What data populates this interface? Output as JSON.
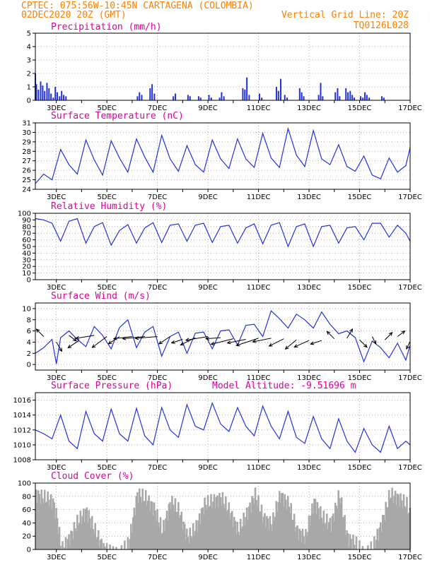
{
  "header": {
    "line1_left": "CPTEC:   075:56W-10:45N   CARTAGENA (COLOMBIA)",
    "line2_left": "02DEC2020 20Z (GMT)",
    "line2_right": "Vertical Grid Line: 20Z",
    "line3_right": "TQ0126L028"
  },
  "colors": {
    "header": "#ff7f00",
    "title": "#e0009a",
    "series": "#2233dd",
    "cloud": "#a8a8a8",
    "grid": "#999999"
  },
  "x_axis": {
    "labels": [
      "3DEC",
      "5DEC",
      "7DEC",
      "9DEC",
      "11DEC",
      "13DEC",
      "15DEC",
      "17DEC"
    ],
    "label_days": [
      3,
      5,
      7,
      9,
      11,
      13,
      15,
      17
    ],
    "day_min": 2.17,
    "day_max": 17.0
  },
  "chart_data": [
    {
      "type": "bar",
      "title": "Precipitation (mm/h)",
      "ylim": [
        0,
        5
      ],
      "yticks": [
        0,
        1,
        2,
        3,
        4,
        5
      ],
      "color": "#2233dd",
      "x": [
        2.17,
        2.21,
        2.29,
        2.38,
        2.46,
        2.54,
        2.63,
        2.71,
        2.79,
        2.88,
        2.96,
        3.04,
        3.13,
        3.21,
        3.29,
        3.38,
        6.21,
        6.29,
        6.38,
        6.71,
        6.79,
        6.88,
        7.63,
        7.71,
        8.21,
        8.29,
        8.63,
        8.71,
        9.04,
        9.13,
        9.46,
        9.54,
        9.63,
        10.38,
        10.46,
        10.54,
        10.63,
        11.04,
        11.13,
        11.71,
        11.79,
        11.88,
        12.04,
        12.13,
        12.63,
        12.71,
        12.79,
        13.38,
        13.46,
        13.54,
        14.04,
        14.13,
        14.21,
        14.46,
        14.54,
        14.63,
        14.71,
        14.79,
        15.04,
        15.13,
        15.21,
        15.29,
        15.38,
        15.88,
        15.96
      ],
      "values": [
        2.0,
        1.2,
        0.8,
        1.4,
        1.1,
        0.7,
        1.3,
        0.9,
        0.5,
        0.2,
        1.0,
        0.6,
        0.3,
        0.7,
        0.4,
        0.3,
        0.3,
        0.6,
        0.4,
        0.9,
        1.2,
        0.5,
        0.3,
        0.5,
        0.4,
        0.3,
        0.3,
        0.2,
        0.4,
        0.2,
        0.2,
        0.6,
        0.3,
        0.9,
        0.8,
        1.7,
        0.4,
        0.5,
        0.2,
        1.0,
        0.7,
        1.6,
        0.4,
        0.2,
        0.9,
        0.6,
        0.3,
        0.4,
        1.3,
        0.3,
        0.6,
        0.9,
        0.3,
        0.9,
        0.6,
        0.7,
        0.4,
        0.2,
        0.3,
        0.2,
        0.6,
        0.4,
        0.2,
        0.3,
        0.2
      ]
    },
    {
      "type": "line",
      "title": "Surface Temperature (nC)",
      "ylim": [
        24,
        31
      ],
      "yticks": [
        24,
        25,
        26,
        27,
        28,
        29,
        30,
        31
      ],
      "color": "#2233dd",
      "x": [
        2.17,
        2.5,
        2.83,
        3.17,
        3.5,
        3.83,
        4.17,
        4.5,
        4.83,
        5.17,
        5.5,
        5.83,
        6.17,
        6.5,
        6.83,
        7.17,
        7.5,
        7.83,
        8.17,
        8.5,
        8.83,
        9.17,
        9.5,
        9.83,
        10.17,
        10.5,
        10.83,
        11.17,
        11.5,
        11.83,
        12.17,
        12.5,
        12.83,
        13.17,
        13.5,
        13.83,
        14.17,
        14.5,
        14.83,
        15.17,
        15.5,
        15.83,
        16.17,
        16.5,
        16.83,
        17.0
      ],
      "values": [
        24.6,
        25.6,
        25.0,
        28.2,
        26.6,
        25.6,
        29.2,
        27.1,
        25.5,
        29.1,
        27.3,
        25.8,
        29.3,
        27.4,
        25.8,
        29.7,
        27.2,
        25.9,
        28.6,
        26.6,
        25.8,
        29.2,
        27.2,
        26.2,
        29.3,
        27.2,
        26.3,
        29.9,
        27.3,
        26.3,
        30.4,
        27.6,
        26.4,
        30.2,
        27.2,
        26.6,
        28.7,
        26.4,
        25.9,
        27.5,
        25.5,
        25.1,
        27.3,
        25.8,
        26.5,
        28.4
      ]
    },
    {
      "type": "line",
      "title": "Relative Humidity (%)",
      "ylim": [
        0,
        100
      ],
      "yticks": [
        0,
        10,
        20,
        30,
        40,
        50,
        60,
        70,
        80,
        90,
        100
      ],
      "color": "#2233dd",
      "x": [
        2.17,
        2.5,
        2.83,
        3.17,
        3.5,
        3.83,
        4.17,
        4.5,
        4.83,
        5.17,
        5.5,
        5.83,
        6.17,
        6.5,
        6.83,
        7.17,
        7.5,
        7.83,
        8.17,
        8.5,
        8.83,
        9.17,
        9.5,
        9.83,
        10.17,
        10.5,
        10.83,
        11.17,
        11.5,
        11.83,
        12.17,
        12.5,
        12.83,
        13.17,
        13.5,
        13.83,
        14.17,
        14.5,
        14.83,
        15.17,
        15.5,
        15.83,
        16.17,
        16.5,
        16.83,
        17.0
      ],
      "values": [
        92,
        90,
        85,
        58,
        88,
        92,
        55,
        80,
        86,
        52,
        74,
        83,
        55,
        78,
        86,
        56,
        82,
        84,
        58,
        82,
        85,
        56,
        80,
        82,
        55,
        78,
        84,
        54,
        82,
        86,
        50,
        80,
        84,
        50,
        80,
        82,
        55,
        78,
        80,
        60,
        85,
        85,
        64,
        82,
        70,
        58
      ]
    },
    {
      "type": "line",
      "title": "Surface Wind (m/s)",
      "ylim": [
        -1,
        11
      ],
      "yticks": [
        0,
        2,
        4,
        6,
        8,
        10
      ],
      "color": "#2233dd",
      "x": [
        2.17,
        2.5,
        2.83,
        3.0,
        3.17,
        3.5,
        3.83,
        4.17,
        4.5,
        4.83,
        5.17,
        5.5,
        5.83,
        6.17,
        6.5,
        6.83,
        7.17,
        7.5,
        7.83,
        8.17,
        8.5,
        8.83,
        9.17,
        9.5,
        9.83,
        10.17,
        10.5,
        10.83,
        11.17,
        11.5,
        11.83,
        12.17,
        12.5,
        12.83,
        13.17,
        13.5,
        13.83,
        14.17,
        14.5,
        14.83,
        15.17,
        15.5,
        15.83,
        16.17,
        16.5,
        16.83,
        17.0
      ],
      "values": [
        2.0,
        3.0,
        4.5,
        0.1,
        4.8,
        6.0,
        4.5,
        3.2,
        6.8,
        5.2,
        2.8,
        6.6,
        8.0,
        3.0,
        5.8,
        6.8,
        1.5,
        5.0,
        5.8,
        2.0,
        5.6,
        5.8,
        2.8,
        6.0,
        6.2,
        3.5,
        7.0,
        7.2,
        5.0,
        9.6,
        8.2,
        6.5,
        9.0,
        8.0,
        6.5,
        9.4,
        7.2,
        5.5,
        6.0,
        4.8,
        0.5,
        4.2,
        3.0,
        1.2,
        3.8,
        0.8,
        3.5
      ],
      "arrows": {
        "x": [
          2.5,
          3.0,
          3.5,
          3.9,
          4.5,
          5.0,
          5.5,
          6.0,
          6.5,
          7.0,
          7.5,
          8.0,
          8.5,
          9.0,
          9.5,
          10.0,
          10.5,
          11.0,
          11.5,
          12.0,
          12.5,
          13.0,
          13.5,
          14.0,
          14.5,
          15.0,
          15.5,
          16.0,
          16.5,
          17.0
        ],
        "y": [
          5.0,
          4.0,
          5.2,
          4.3,
          5.2,
          5.0,
          5.0,
          5.0,
          5.0,
          5.0,
          5.0,
          4.5,
          4.8,
          5.0,
          4.8,
          4.6,
          4.5,
          4.7,
          4.7,
          4.6,
          4.4,
          4.3,
          4.3,
          4.6,
          4.7,
          4.4,
          5.0,
          4.4,
          5.0,
          4.1
        ],
        "u": [
          -2,
          1.5,
          2,
          -3,
          -5,
          -4,
          -3,
          -5,
          -6,
          -6,
          -3,
          -3,
          -4,
          -6,
          -4,
          -6,
          -5,
          -6,
          -5,
          -4,
          -3,
          -4,
          -3,
          -2,
          1.5,
          2,
          1,
          2,
          2,
          -1
        ],
        "v": [
          2,
          -2.5,
          -1.5,
          -2,
          -0.8,
          -3,
          -2,
          -0.6,
          -0.6,
          -0.5,
          -2,
          -1,
          -2,
          -1,
          -0.3,
          -1.5,
          -1,
          -2,
          -1,
          -2,
          -2.5,
          -1.8,
          -1,
          2,
          2.5,
          -2,
          -2,
          2,
          1.5,
          -2
        ]
      }
    },
    {
      "type": "line",
      "title": "Surface Pressure (hPa)",
      "annotation": "Model Altitude: -9.51696 m",
      "ylim": [
        1008,
        1017
      ],
      "yticks": [
        1008,
        1010,
        1012,
        1014,
        1016
      ],
      "color": "#2233dd",
      "x": [
        2.17,
        2.5,
        2.83,
        3.17,
        3.5,
        3.83,
        4.17,
        4.5,
        4.83,
        5.17,
        5.5,
        5.83,
        6.17,
        6.5,
        6.83,
        7.17,
        7.5,
        7.83,
        8.17,
        8.5,
        8.83,
        9.17,
        9.5,
        9.83,
        10.17,
        10.5,
        10.83,
        11.17,
        11.5,
        11.83,
        12.17,
        12.5,
        12.83,
        13.17,
        13.5,
        13.83,
        14.17,
        14.5,
        14.83,
        15.17,
        15.5,
        15.83,
        16.17,
        16.5,
        16.83,
        17.0
      ],
      "values": [
        1012.0,
        1011.5,
        1010.8,
        1014.0,
        1010.5,
        1009.5,
        1014.5,
        1011.5,
        1010.5,
        1014.8,
        1011.5,
        1010.5,
        1014.9,
        1011.2,
        1010.0,
        1015.0,
        1012.0,
        1011.0,
        1015.4,
        1012.5,
        1012.0,
        1015.6,
        1012.8,
        1011.8,
        1015.0,
        1012.5,
        1011.2,
        1015.2,
        1012.5,
        1010.8,
        1014.5,
        1011.0,
        1010.2,
        1013.8,
        1010.8,
        1009.5,
        1013.5,
        1010.5,
        1009.0,
        1012.2,
        1010.0,
        1009.0,
        1012.5,
        1009.5,
        1010.5,
        1010.0
      ]
    },
    {
      "type": "bar",
      "title": "Cloud Cover (%)",
      "ylim": [
        0,
        100
      ],
      "yticks": [
        0,
        20,
        40,
        60,
        80,
        100
      ],
      "color": "#a8a8a8",
      "profile_x": [
        2.17,
        2.5,
        2.83,
        3.0,
        3.17,
        3.5,
        3.83,
        4.17,
        4.5,
        4.83,
        5.17,
        5.5,
        5.83,
        6.17,
        6.5,
        6.83,
        7.17,
        7.5,
        7.83,
        8.17,
        8.5,
        8.83,
        9.17,
        9.5,
        9.83,
        10.17,
        10.5,
        10.83,
        11.17,
        11.5,
        11.83,
        12.17,
        12.5,
        12.83,
        13.17,
        13.5,
        13.83,
        14.17,
        14.5,
        14.83,
        15.17,
        15.5,
        15.83,
        16.17,
        16.5,
        16.83,
        17.0
      ],
      "values": [
        95,
        90,
        85,
        60,
        10,
        30,
        55,
        70,
        40,
        15,
        5,
        8,
        20,
        95,
        90,
        75,
        40,
        85,
        70,
        30,
        45,
        80,
        85,
        90,
        70,
        40,
        65,
        95,
        60,
        50,
        95,
        80,
        40,
        30,
        85,
        60,
        50,
        95,
        30,
        20,
        5,
        15,
        50,
        95,
        90,
        80,
        60
      ]
    }
  ]
}
